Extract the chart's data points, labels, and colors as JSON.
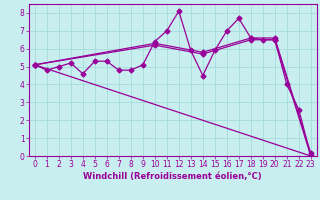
{
  "background_color": "#c8eef0",
  "grid_color": "#aadddd",
  "line_color": "#990099",
  "spine_color": "#7777aa",
  "xlabel": "Windchill (Refroidissement éolien,°C)",
  "xlim": [
    -0.5,
    23.5
  ],
  "ylim": [
    0,
    8.5
  ],
  "xticks": [
    0,
    1,
    2,
    3,
    4,
    5,
    6,
    7,
    8,
    9,
    10,
    11,
    12,
    13,
    14,
    15,
    16,
    17,
    18,
    19,
    20,
    21,
    22,
    23
  ],
  "yticks": [
    0,
    1,
    2,
    3,
    4,
    5,
    6,
    7,
    8
  ],
  "series1_x": [
    0,
    1,
    2,
    3,
    4,
    5,
    6,
    7,
    8,
    9,
    10,
    11,
    12,
    13,
    14,
    15,
    16,
    17,
    18,
    19,
    20,
    21,
    22,
    23
  ],
  "series1_y": [
    5.1,
    4.8,
    5.0,
    5.2,
    4.6,
    5.3,
    5.3,
    4.8,
    4.8,
    5.1,
    6.4,
    7.0,
    8.1,
    5.9,
    4.5,
    5.9,
    7.0,
    7.7,
    6.6,
    6.5,
    6.5,
    4.0,
    2.6,
    0.0
  ],
  "series2_x": [
    0,
    10,
    14,
    18,
    20,
    23
  ],
  "series2_y": [
    5.1,
    6.2,
    5.7,
    6.5,
    6.5,
    0.0
  ],
  "series3_x": [
    0,
    10,
    14,
    18,
    20,
    23
  ],
  "series3_y": [
    5.1,
    6.3,
    5.8,
    6.6,
    6.6,
    0.15
  ],
  "series4_x": [
    0,
    23
  ],
  "series4_y": [
    5.1,
    0.0
  ],
  "tick_fontsize": 5.5,
  "label_fontsize": 6.0,
  "marker_size": 2.5,
  "line_width": 0.9
}
